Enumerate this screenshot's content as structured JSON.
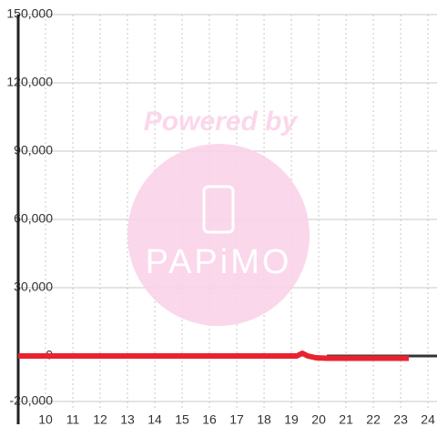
{
  "chart_data": {
    "type": "line",
    "watermark": {
      "caption": "Powered by",
      "logo": "PAPiMO"
    },
    "xlim": [
      9,
      24.33
    ],
    "xticks": [
      10,
      11,
      12,
      13,
      14,
      15,
      16,
      17,
      18,
      19,
      20,
      21,
      22,
      23,
      24
    ],
    "ylim": [
      -20000,
      150000
    ],
    "yticks": [
      {
        "value": -20000,
        "label": "-20,000"
      },
      0,
      {
        "value": 30000,
        "label": "30,000"
      },
      {
        "value": 60000,
        "label": "60,000"
      },
      {
        "value": 90000,
        "label": "90,000"
      },
      {
        "value": 120000,
        "label": "120,000"
      },
      {
        "value": 150000,
        "label": "150,000"
      }
    ],
    "grid": true,
    "series": [
      {
        "color": "#e8232f",
        "x": [
          9,
          19.2,
          19.4,
          19.6,
          19.9,
          20.3,
          23.3
        ],
        "values": [
          0,
          0,
          1200,
          0,
          -800,
          -1000,
          -1000
        ]
      },
      {
        "color": "#333333",
        "x": [
          20.3,
          24.33
        ],
        "values": [
          0,
          0
        ]
      }
    ]
  }
}
